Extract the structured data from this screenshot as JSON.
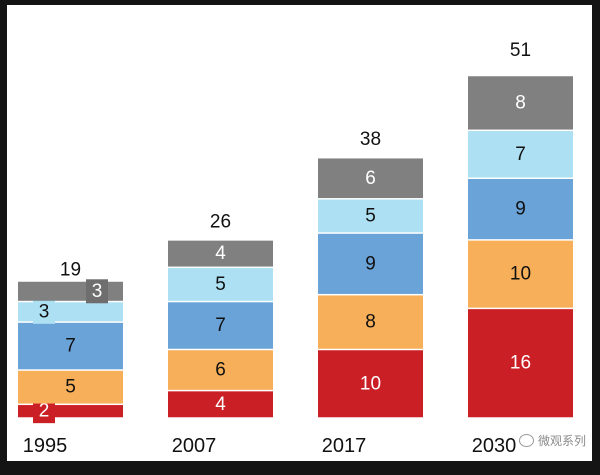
{
  "watermark": "微观系列",
  "colors": {
    "segments": [
      "#cb1f26",
      "#f8af59",
      "#6aa3d8",
      "#ade0f2",
      "#808080"
    ],
    "text_dark": "#111111",
    "text_light": "#ffffff"
  },
  "chart_data": {
    "type": "bar",
    "stacked": true,
    "categories": [
      "1995",
      "2007",
      "2017",
      "2030"
    ],
    "series": [
      {
        "values": [
          2,
          4,
          10,
          16
        ]
      },
      {
        "values": [
          5,
          6,
          8,
          10
        ]
      },
      {
        "values": [
          7,
          7,
          9,
          9
        ]
      },
      {
        "values": [
          3,
          5,
          5,
          7
        ]
      },
      {
        "values": [
          3,
          4,
          6,
          8
        ]
      }
    ],
    "totals": [
      19,
      26,
      38,
      51
    ],
    "title": "",
    "xlabel": "",
    "ylabel": "",
    "ylim": [
      0,
      51
    ],
    "grid": false,
    "legend": "none"
  }
}
